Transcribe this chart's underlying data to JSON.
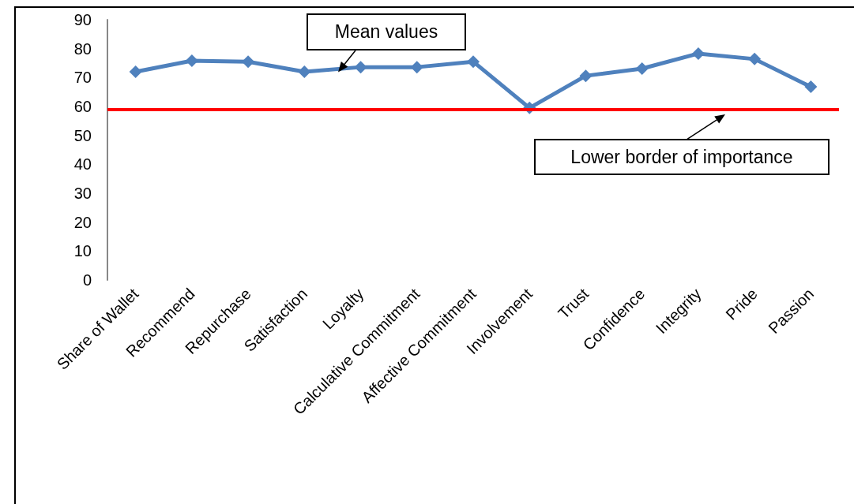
{
  "chart_data": {
    "type": "line",
    "categories": [
      "Share of Wallet",
      "Recommend",
      "Repurchase",
      "Satisfaction",
      "Loyalty",
      "Calculative Commitment",
      "Affective Commitment",
      "Involvement",
      "Trust",
      "Confidence",
      "Integrity",
      "Pride",
      "Passion"
    ],
    "series": [
      {
        "name": "Mean values",
        "color": "#4f81bd",
        "values": [
          72,
          75.8,
          75.5,
          72,
          73.6,
          73.6,
          75.5,
          59.5,
          70.6,
          73.1,
          78.3,
          76.4,
          66.8
        ]
      }
    ],
    "ylim": [
      0,
      90
    ],
    "yticks": [
      0,
      10,
      20,
      30,
      40,
      50,
      60,
      70,
      80,
      90
    ],
    "ref_lines": [
      {
        "axis": "y",
        "value": 59,
        "label": "Lower border of importance",
        "color": "#ff0000"
      }
    ],
    "marker": "diamond",
    "grid": false,
    "legend": false
  }
}
